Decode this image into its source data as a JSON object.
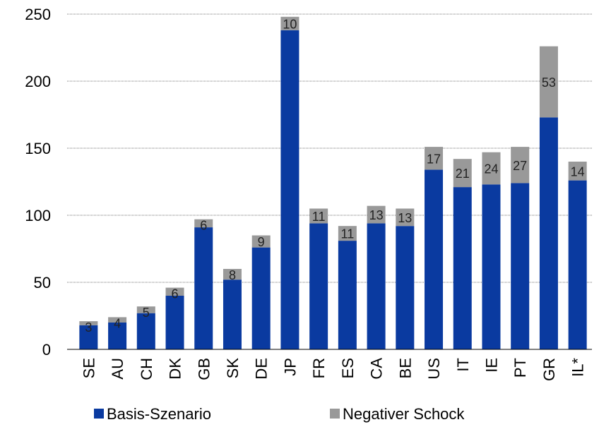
{
  "chart_data": {
    "type": "bar",
    "stacked": true,
    "categories": [
      "SE",
      "AU",
      "CH",
      "DK",
      "GB",
      "SK",
      "DE",
      "JP",
      "FR",
      "ES",
      "CA",
      "BE",
      "US",
      "IT",
      "IE",
      "PT",
      "GR",
      "IL*"
    ],
    "series": [
      {
        "name": "Basis-Szenario",
        "color": "#0a3aa0",
        "values": [
          18,
          20,
          27,
          40,
          91,
          52,
          76,
          238,
          94,
          81,
          94,
          92,
          134,
          121,
          123,
          124,
          173,
          126
        ]
      },
      {
        "name": "Negativer Schock",
        "color": "#999999",
        "values": [
          3,
          4,
          5,
          6,
          6,
          8,
          9,
          10,
          11,
          11,
          13,
          13,
          17,
          21,
          24,
          27,
          53,
          14
        ]
      }
    ],
    "data_labels": [
      "3",
      "4",
      "5",
      "6",
      "6",
      "8",
      "9",
      "10",
      "11",
      "11",
      "13",
      "13",
      "17",
      "21",
      "24",
      "27",
      "53",
      "14"
    ],
    "ylim": [
      0,
      250
    ],
    "yticks": [
      "0",
      "50",
      "100",
      "150",
      "200",
      "250"
    ],
    "title": "",
    "xlabel": "",
    "ylabel": "",
    "grid": true,
    "legend_position": "bottom"
  }
}
